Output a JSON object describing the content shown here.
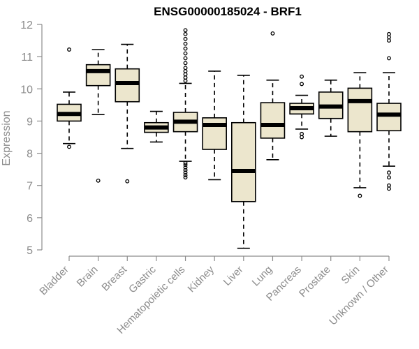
{
  "chart_data": {
    "type": "boxplot",
    "title": "ENSG00000185024 - BRF1",
    "ylabel": "Expression",
    "xlabel": "",
    "ylim": [
      5,
      12
    ],
    "yticks": [
      "5",
      "6",
      "7",
      "8",
      "9",
      "10",
      "11",
      "12"
    ],
    "grid": false,
    "colors": {
      "box_fill": "#ece6cd",
      "box_stroke": "#000000",
      "axis": "#8c8c8c",
      "title": "#000000"
    },
    "categories": [
      "Bladder",
      "Brain",
      "Breast",
      "Gastric",
      "Hematopoietic cells",
      "Kidney",
      "Liver",
      "Lung",
      "Pancreas",
      "Prostate",
      "Skin",
      "Unknown / Other"
    ],
    "boxes": [
      {
        "label": "Bladder",
        "whislo": 8.3,
        "q1": 9.0,
        "med": 9.22,
        "q3": 9.52,
        "whishi": 9.9,
        "outliers": [
          8.2,
          11.22
        ]
      },
      {
        "label": "Brain",
        "whislo": 9.2,
        "q1": 10.1,
        "med": 10.55,
        "q3": 10.75,
        "whishi": 11.22,
        "outliers": [
          7.15
        ]
      },
      {
        "label": "Breast",
        "whislo": 8.15,
        "q1": 9.6,
        "med": 10.18,
        "q3": 10.62,
        "whishi": 11.38,
        "outliers": [
          7.13
        ]
      },
      {
        "label": "Gastric",
        "whislo": 8.35,
        "q1": 8.65,
        "med": 8.8,
        "q3": 8.95,
        "whishi": 9.3,
        "outliers": []
      },
      {
        "label": "Hematopoietic cells",
        "whislo": 7.75,
        "q1": 8.67,
        "med": 8.98,
        "q3": 9.27,
        "whishi": 10.17,
        "outliers": [
          7.25,
          7.32,
          7.4,
          7.48,
          7.56,
          7.64,
          7.7,
          10.25,
          10.35,
          10.45,
          10.55,
          10.65,
          10.8,
          10.95,
          11.1,
          11.25,
          11.4,
          11.55,
          11.7,
          11.82
        ]
      },
      {
        "label": "Kidney",
        "whislo": 7.18,
        "q1": 8.12,
        "med": 8.88,
        "q3": 9.1,
        "whishi": 10.55,
        "outliers": []
      },
      {
        "label": "Liver",
        "whislo": 5.05,
        "q1": 6.5,
        "med": 7.45,
        "q3": 8.95,
        "whishi": 10.42,
        "outliers": []
      },
      {
        "label": "Lung",
        "whislo": 7.8,
        "q1": 8.47,
        "med": 8.88,
        "q3": 9.57,
        "whishi": 10.27,
        "outliers": [
          11.72
        ]
      },
      {
        "label": "Pancreas",
        "whislo": 8.75,
        "q1": 9.22,
        "med": 9.4,
        "q3": 9.55,
        "whishi": 9.8,
        "outliers": [
          8.5,
          8.6,
          10.15,
          10.38
        ]
      },
      {
        "label": "Prostate",
        "whislo": 8.53,
        "q1": 9.08,
        "med": 9.45,
        "q3": 9.9,
        "whishi": 10.27,
        "outliers": []
      },
      {
        "label": "Skin",
        "whislo": 6.93,
        "q1": 8.67,
        "med": 9.62,
        "q3": 10.02,
        "whishi": 10.5,
        "outliers": [
          6.68
        ]
      },
      {
        "label": "Unknown / Other",
        "whislo": 7.6,
        "q1": 8.7,
        "med": 9.2,
        "q3": 9.55,
        "whishi": 10.5,
        "outliers": [
          6.9,
          7.0,
          7.25,
          7.4,
          10.95,
          11.5,
          11.6,
          11.7
        ]
      }
    ]
  }
}
